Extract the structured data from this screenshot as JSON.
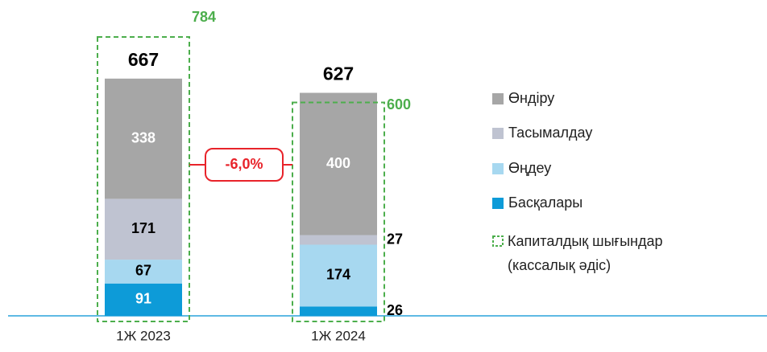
{
  "chart_data": {
    "type": "stacked_bar",
    "categories": [
      "1Ж 2023",
      "1Ж 2024"
    ],
    "series": [
      {
        "name": "Басқалары",
        "color": "#0d9bd8",
        "label_color": "#ffffff",
        "values": [
          91,
          26
        ]
      },
      {
        "name": "Өңдеу",
        "color": "#a7d8f0",
        "label_color": "#000000",
        "values": [
          67,
          174
        ]
      },
      {
        "name": "Тасымалдау",
        "color": "#bfc3d1",
        "label_color": "#000000",
        "values": [
          171,
          27
        ]
      },
      {
        "name": "Өндіру",
        "color": "#a6a6a6",
        "label_color": "#ffffff",
        "values": [
          338,
          400
        ]
      }
    ],
    "totals": [
      667,
      627
    ],
    "capex": {
      "name": "Капиталдық шығындар (кассалық әдіс)",
      "color": "#4cae4c",
      "values": [
        784,
        600
      ]
    },
    "change": {
      "value": -6.0,
      "label": "-6,0%",
      "color": "#e8232a"
    },
    "ylim": [
      0,
      888
    ]
  }
}
